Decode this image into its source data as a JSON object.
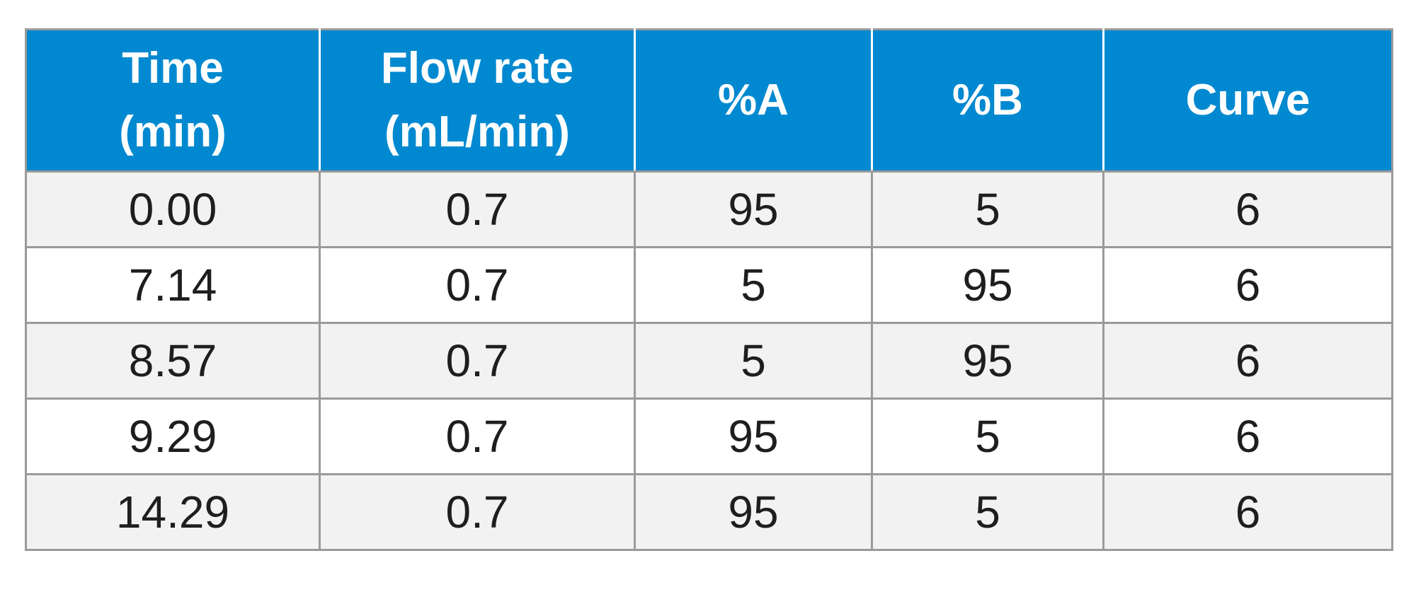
{
  "table": {
    "header": {
      "time": {
        "line1": "Time",
        "line2": "(min)"
      },
      "flow": {
        "line1": "Flow rate",
        "line2": "(mL/min)"
      },
      "a": "%A",
      "b": "%B",
      "curve": "Curve"
    },
    "rows": [
      {
        "time": "0.00",
        "flow": "0.7",
        "a": "95",
        "b": "5",
        "curve": "6"
      },
      {
        "time": "7.14",
        "flow": "0.7",
        "a": "5",
        "b": "95",
        "curve": "6"
      },
      {
        "time": "8.57",
        "flow": "0.7",
        "a": "5",
        "b": "95",
        "curve": "6"
      },
      {
        "time": "9.29",
        "flow": "0.7",
        "a": "95",
        "b": "5",
        "curve": "6"
      },
      {
        "time": "14.29",
        "flow": "0.7",
        "a": "95",
        "b": "5",
        "curve": "6"
      }
    ]
  },
  "colors": {
    "header_background": "#0089d0",
    "header_text": "#ffffff",
    "shaded_row": "#f2f2f3",
    "plain_row": "#ffffff",
    "border": "#9a9a9a",
    "body_text": "#1e1e1e"
  }
}
